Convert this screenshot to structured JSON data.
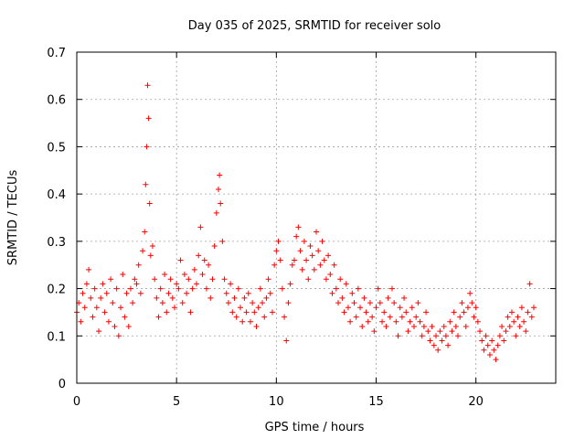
{
  "chart_data": {
    "type": "scatter",
    "title": "Day 035 of 2025, SRMTID for receiver solo",
    "xlabel": "GPS time / hours",
    "ylabel": "SRMTID / TECUs",
    "xlim": [
      0,
      24
    ],
    "ylim": [
      0,
      0.7
    ],
    "xticks": [
      0,
      5,
      10,
      15,
      20
    ],
    "yticks": [
      0,
      0.1,
      0.2,
      0.3,
      0.4,
      0.5,
      0.6,
      0.7
    ],
    "xtick_labels": [
      "0",
      "5",
      "10",
      "15",
      "20"
    ],
    "ytick_labels": [
      "0",
      "0.1",
      "0.2",
      "0.3",
      "0.4",
      "0.5",
      "0.6",
      "0.7"
    ],
    "grid": true,
    "marker": "plus",
    "color": "#ff0000",
    "series": [
      {
        "name": "SRMTID",
        "x": [
          0.0,
          0.1,
          0.2,
          0.3,
          0.4,
          0.5,
          0.6,
          0.7,
          0.8,
          0.9,
          1.0,
          1.1,
          1.2,
          1.3,
          1.4,
          1.5,
          1.6,
          1.7,
          1.8,
          1.9,
          2.0,
          2.1,
          2.2,
          2.3,
          2.4,
          2.5,
          2.6,
          2.7,
          2.8,
          2.9,
          3.0,
          3.1,
          3.2,
          3.3,
          3.4,
          3.45,
          3.5,
          3.55,
          3.6,
          3.65,
          3.7,
          3.8,
          3.9,
          4.0,
          4.1,
          4.2,
          4.3,
          4.4,
          4.5,
          4.6,
          4.7,
          4.8,
          4.9,
          5.0,
          5.1,
          5.2,
          5.3,
          5.4,
          5.5,
          5.6,
          5.7,
          5.8,
          5.9,
          6.0,
          6.1,
          6.2,
          6.3,
          6.4,
          6.5,
          6.6,
          6.7,
          6.8,
          6.9,
          7.0,
          7.1,
          7.15,
          7.2,
          7.3,
          7.4,
          7.5,
          7.6,
          7.7,
          7.8,
          7.9,
          8.0,
          8.1,
          8.2,
          8.3,
          8.4,
          8.5,
          8.6,
          8.7,
          8.8,
          8.9,
          9.0,
          9.1,
          9.2,
          9.3,
          9.4,
          9.5,
          9.6,
          9.7,
          9.8,
          9.9,
          10.0,
          10.1,
          10.2,
          10.3,
          10.4,
          10.5,
          10.6,
          10.7,
          10.8,
          10.9,
          11.0,
          11.1,
          11.2,
          11.3,
          11.4,
          11.5,
          11.6,
          11.7,
          11.8,
          11.9,
          12.0,
          12.1,
          12.2,
          12.3,
          12.4,
          12.5,
          12.6,
          12.7,
          12.8,
          12.9,
          13.0,
          13.1,
          13.2,
          13.3,
          13.4,
          13.5,
          13.6,
          13.7,
          13.8,
          13.9,
          14.0,
          14.1,
          14.2,
          14.3,
          14.4,
          14.5,
          14.6,
          14.7,
          14.8,
          14.9,
          15.0,
          15.1,
          15.2,
          15.3,
          15.4,
          15.5,
          15.6,
          15.7,
          15.8,
          15.9,
          16.0,
          16.1,
          16.2,
          16.3,
          16.4,
          16.5,
          16.6,
          16.7,
          16.8,
          16.9,
          17.0,
          17.1,
          17.2,
          17.3,
          17.4,
          17.5,
          17.6,
          17.7,
          17.8,
          17.9,
          18.0,
          18.1,
          18.2,
          18.3,
          18.4,
          18.5,
          18.6,
          18.7,
          18.8,
          18.9,
          19.0,
          19.1,
          19.2,
          19.3,
          19.4,
          19.5,
          19.6,
          19.7,
          19.8,
          19.9,
          20.0,
          20.1,
          20.2,
          20.3,
          20.4,
          20.5,
          20.6,
          20.7,
          20.8,
          20.9,
          21.0,
          21.1,
          21.2,
          21.3,
          21.4,
          21.5,
          21.6,
          21.7,
          21.8,
          21.9,
          22.0,
          22.1,
          22.2,
          22.3,
          22.4,
          22.5,
          22.6,
          22.7,
          22.8,
          22.9
        ],
        "y": [
          0.15,
          0.17,
          0.13,
          0.19,
          0.16,
          0.21,
          0.24,
          0.18,
          0.14,
          0.2,
          0.16,
          0.11,
          0.18,
          0.21,
          0.15,
          0.19,
          0.13,
          0.22,
          0.17,
          0.12,
          0.2,
          0.1,
          0.16,
          0.23,
          0.14,
          0.19,
          0.12,
          0.2,
          0.17,
          0.22,
          0.21,
          0.25,
          0.19,
          0.28,
          0.32,
          0.42,
          0.5,
          0.63,
          0.56,
          0.38,
          0.27,
          0.29,
          0.22,
          0.18,
          0.14,
          0.2,
          0.17,
          0.23,
          0.15,
          0.19,
          0.22,
          0.18,
          0.16,
          0.21,
          0.2,
          0.26,
          0.17,
          0.23,
          0.19,
          0.22,
          0.15,
          0.2,
          0.24,
          0.21,
          0.27,
          0.33,
          0.23,
          0.26,
          0.2,
          0.25,
          0.18,
          0.22,
          0.29,
          0.36,
          0.41,
          0.44,
          0.38,
          0.3,
          0.22,
          0.19,
          0.17,
          0.21,
          0.15,
          0.18,
          0.14,
          0.2,
          0.16,
          0.13,
          0.18,
          0.15,
          0.19,
          0.13,
          0.17,
          0.15,
          0.12,
          0.16,
          0.2,
          0.17,
          0.14,
          0.18,
          0.22,
          0.19,
          0.15,
          0.25,
          0.28,
          0.3,
          0.26,
          0.2,
          0.14,
          0.09,
          0.17,
          0.21,
          0.25,
          0.26,
          0.31,
          0.33,
          0.28,
          0.24,
          0.3,
          0.26,
          0.22,
          0.29,
          0.27,
          0.24,
          0.32,
          0.28,
          0.25,
          0.3,
          0.26,
          0.22,
          0.27,
          0.23,
          0.19,
          0.25,
          0.2,
          0.17,
          0.22,
          0.18,
          0.15,
          0.21,
          0.16,
          0.13,
          0.19,
          0.17,
          0.14,
          0.2,
          0.16,
          0.12,
          0.18,
          0.15,
          0.13,
          0.17,
          0.14,
          0.11,
          0.16,
          0.2,
          0.17,
          0.13,
          0.15,
          0.12,
          0.18,
          0.14,
          0.2,
          0.17,
          0.13,
          0.1,
          0.16,
          0.14,
          0.18,
          0.15,
          0.11,
          0.13,
          0.16,
          0.12,
          0.14,
          0.17,
          0.13,
          0.1,
          0.12,
          0.15,
          0.11,
          0.09,
          0.12,
          0.08,
          0.1,
          0.07,
          0.11,
          0.09,
          0.12,
          0.1,
          0.08,
          0.13,
          0.11,
          0.15,
          0.12,
          0.1,
          0.14,
          0.17,
          0.15,
          0.12,
          0.16,
          0.19,
          0.17,
          0.14,
          0.16,
          0.13,
          0.11,
          0.09,
          0.07,
          0.1,
          0.08,
          0.06,
          0.09,
          0.07,
          0.05,
          0.08,
          0.1,
          0.12,
          0.09,
          0.11,
          0.14,
          0.12,
          0.15,
          0.13,
          0.1,
          0.14,
          0.12,
          0.16,
          0.13,
          0.11,
          0.15,
          0.21,
          0.14,
          0.16
        ]
      }
    ]
  }
}
